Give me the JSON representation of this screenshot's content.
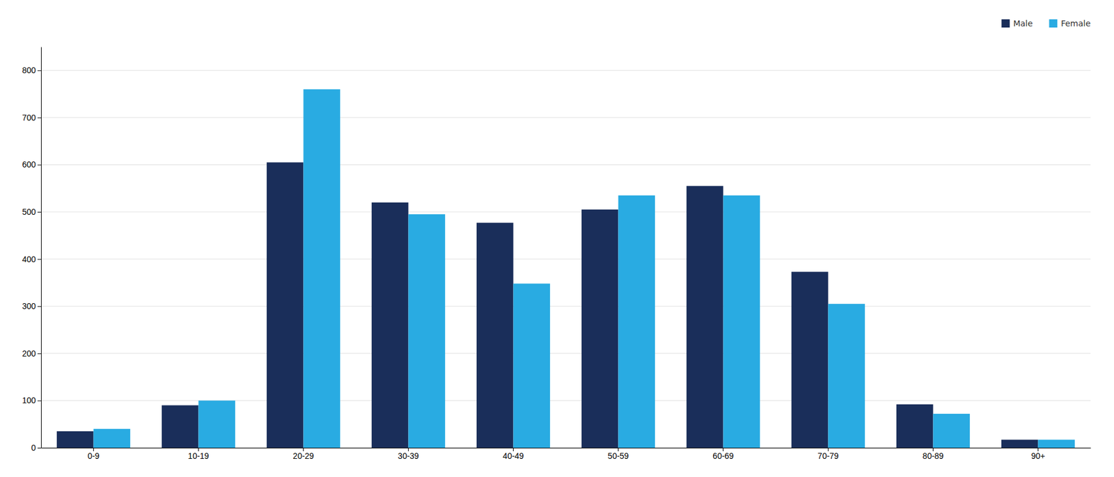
{
  "chart_data": {
    "type": "bar",
    "categories": [
      "0-9",
      "10-19",
      "20-29",
      "30-39",
      "40-49",
      "50-59",
      "60-69",
      "70-79",
      "80-89",
      "90+"
    ],
    "series": [
      {
        "name": "Male",
        "color": "#1a2e5a",
        "values": [
          35,
          90,
          605,
          520,
          477,
          505,
          555,
          373,
          92,
          17
        ]
      },
      {
        "name": "Female",
        "color": "#29abe2",
        "values": [
          40,
          100,
          760,
          495,
          348,
          535,
          535,
          305,
          72,
          17
        ]
      }
    ],
    "ylim": [
      0,
      850
    ],
    "yticks": [
      0,
      100,
      200,
      300,
      400,
      500,
      600,
      700,
      800
    ],
    "grid": true,
    "legend": "top-right"
  }
}
